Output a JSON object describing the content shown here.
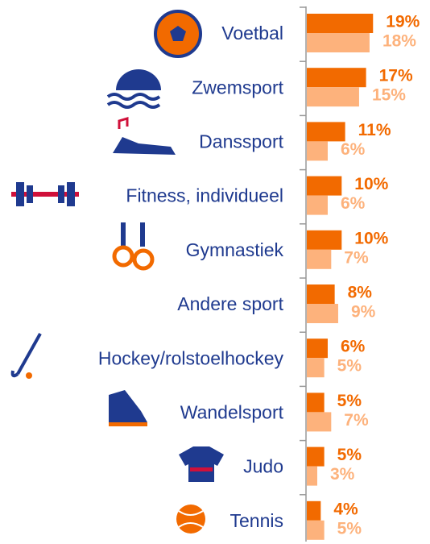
{
  "chart_data": {
    "type": "bar",
    "categories": [
      "Voetbal",
      "Zwemsport",
      "Danssport",
      "Fitness, individueel",
      "Gymnastiek",
      "Andere sport",
      "Hockey/rolstoelhockey",
      "Wandelsport",
      "Judo",
      "Tennis"
    ],
    "series": [
      {
        "color": "#f26a00",
        "values": [
          19,
          17,
          11,
          10,
          10,
          8,
          6,
          5,
          5,
          4
        ],
        "value_labels": [
          "19%",
          "17%",
          "11%",
          "10%",
          "10%",
          "8%",
          "6%",
          "5%",
          "5%",
          "4%"
        ]
      },
      {
        "color": "#fdb27c",
        "values": [
          18,
          15,
          6,
          6,
          7,
          9,
          5,
          7,
          3,
          5
        ],
        "value_labels": [
          "18%",
          "15%",
          "6%",
          "6%",
          "7%",
          "9%",
          "5%",
          "7%",
          "3%",
          "5%"
        ]
      }
    ]
  }
}
